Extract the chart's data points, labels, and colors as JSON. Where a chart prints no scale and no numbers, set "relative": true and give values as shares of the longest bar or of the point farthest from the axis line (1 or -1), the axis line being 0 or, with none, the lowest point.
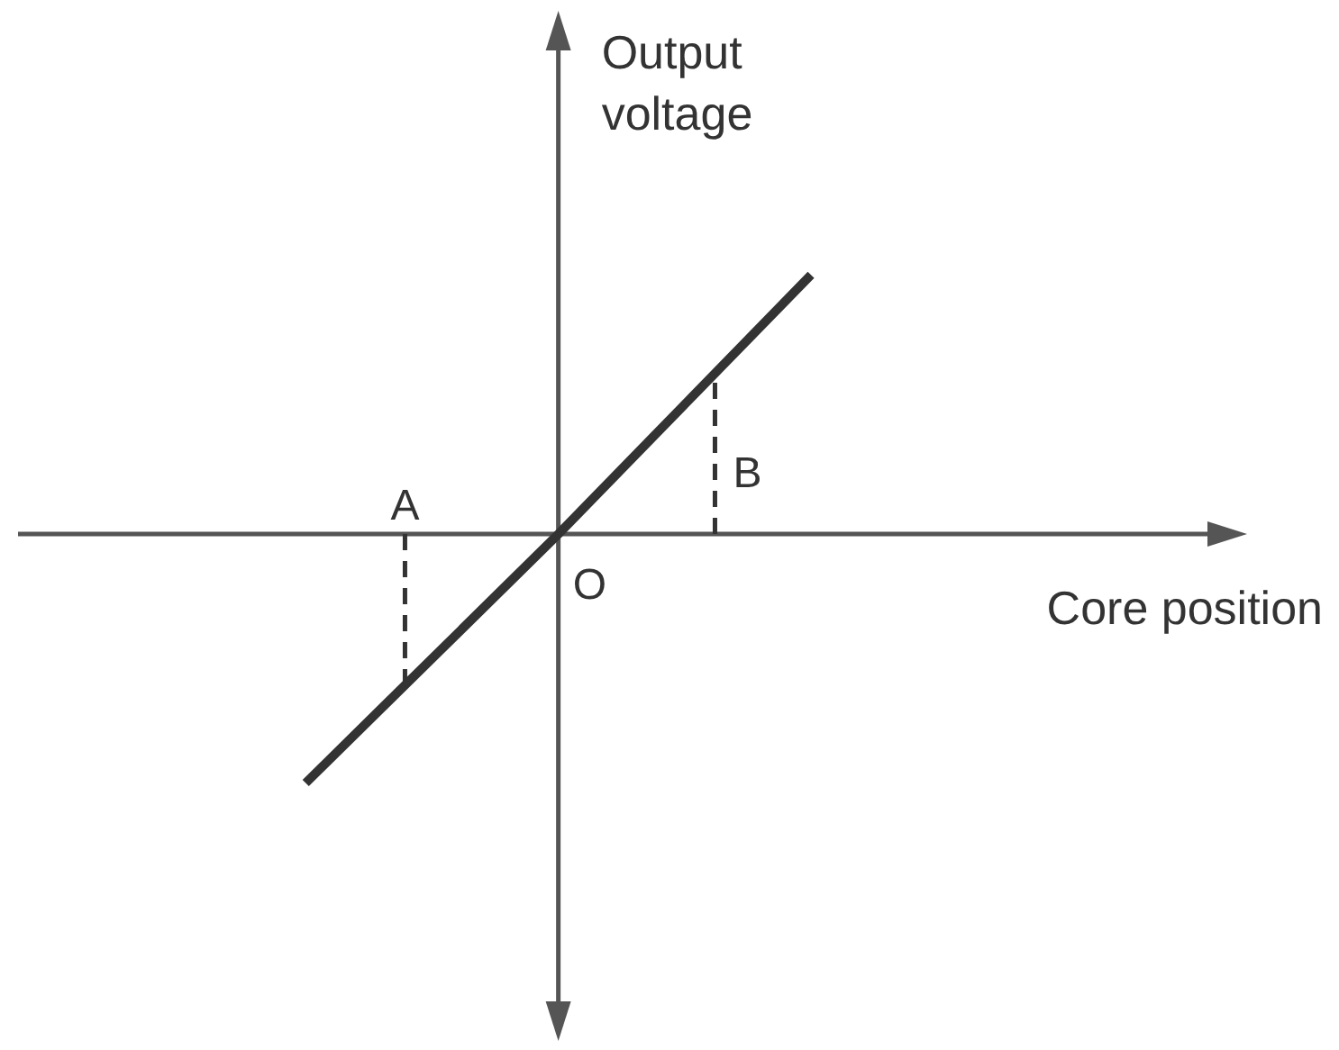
{
  "chart_data": {
    "type": "line",
    "relative": true,
    "xlabel": "Core position",
    "ylabel": "Output voltage",
    "categories": [
      null,
      null,
      null
    ],
    "series": [
      {
        "color": "#333333",
        "values": [
          -0.96,
          0,
          1
        ]
      }
    ],
    "annotations": [
      "A",
      "B",
      "O"
    ]
  }
}
